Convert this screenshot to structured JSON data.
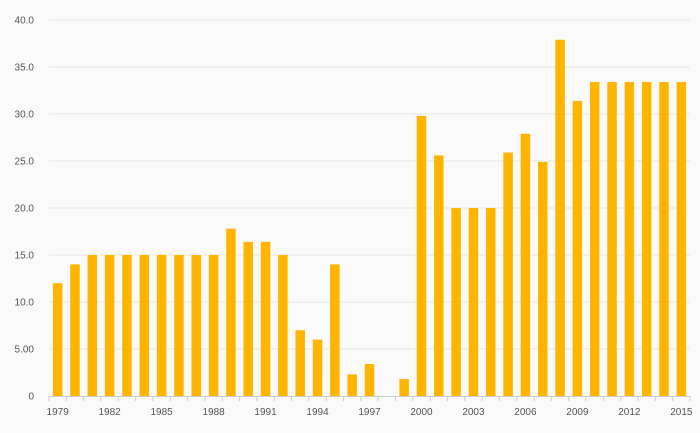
{
  "chart_data": {
    "type": "bar",
    "title": "",
    "xlabel": "",
    "ylabel": "",
    "ylim": [
      0,
      40
    ],
    "grid": true,
    "bar_color": "#ffb400",
    "categories": [
      "1979",
      "1980",
      "1981",
      "1982",
      "1983",
      "1984",
      "1985",
      "1986",
      "1987",
      "1988",
      "1989",
      "1990",
      "1991",
      "1992",
      "1993",
      "1994",
      "1995",
      "1996",
      "1997",
      "1998",
      "1999",
      "2000",
      "2001",
      "2002",
      "2003",
      "2004",
      "2005",
      "2006",
      "2007",
      "2008",
      "2009",
      "2010",
      "2011",
      "2012",
      "2013",
      "2014",
      "2015"
    ],
    "values": [
      12.0,
      14.0,
      15.0,
      15.0,
      15.0,
      15.0,
      15.0,
      15.0,
      15.0,
      15.0,
      17.8,
      16.4,
      16.4,
      15.0,
      7.0,
      6.0,
      14.0,
      2.3,
      3.4,
      0,
      1.8,
      29.8,
      25.6,
      20.0,
      20.0,
      20.0,
      25.9,
      27.9,
      24.9,
      37.9,
      31.4,
      33.4,
      33.4,
      33.4,
      33.4,
      33.4,
      33.4
    ],
    "y_ticks": [
      0,
      5,
      10,
      15,
      20,
      25,
      30,
      35,
      40
    ],
    "y_tick_labels": [
      "0",
      "5.00",
      "10.0",
      "15.0",
      "20.0",
      "25.0",
      "30.0",
      "35.0",
      "40.0"
    ],
    "x_tick_labels": [
      "1979",
      "1982",
      "1985",
      "1988",
      "1991",
      "1994",
      "1997",
      "2000",
      "2003",
      "2006",
      "2009",
      "2012",
      "2015"
    ]
  }
}
